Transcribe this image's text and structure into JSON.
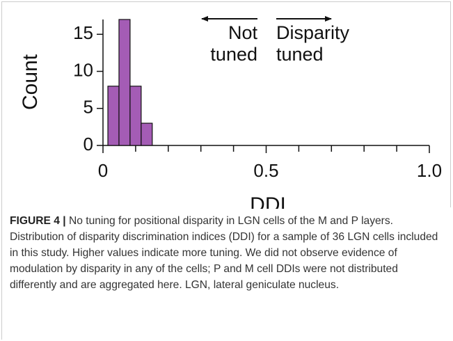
{
  "chart_data": {
    "type": "histogram",
    "bins": [
      0.015,
      0.049,
      0.083,
      0.117,
      0.151
    ],
    "values": [
      8,
      17,
      8,
      3
    ],
    "color": "#a45cb5",
    "xlabel": "DDI",
    "ylabel": "Count",
    "xlim": [
      0,
      1
    ],
    "ylim": [
      0,
      17
    ],
    "xticks": [
      0,
      0.5,
      {
        "value": 1,
        "label": "1.0"
      }
    ],
    "xminorticks": [
      0.1,
      0.2,
      0.3,
      0.4,
      0.6,
      0.7,
      0.8,
      0.9
    ],
    "yticks": [
      0,
      5,
      10,
      15
    ],
    "annotations": [
      {
        "lines": [
          "Not",
          "tuned"
        ],
        "arrow": "left"
      },
      {
        "lines": [
          "Disparity",
          "tuned"
        ],
        "arrow": "right"
      }
    ]
  },
  "caption": {
    "label": "FIGURE 4 |",
    "text": "No tuning for positional disparity in LGN cells of the M and P layers. Distribution of disparity discrimination indices (DDI) for a sample of 36 LGN cells included in this study. Higher values indicate more tuning. We did not observe evidence of modulation by disparity in any of the cells; P and M cell DDIs were not distributed differently and are aggregated here. LGN, lateral geniculate nucleus."
  }
}
